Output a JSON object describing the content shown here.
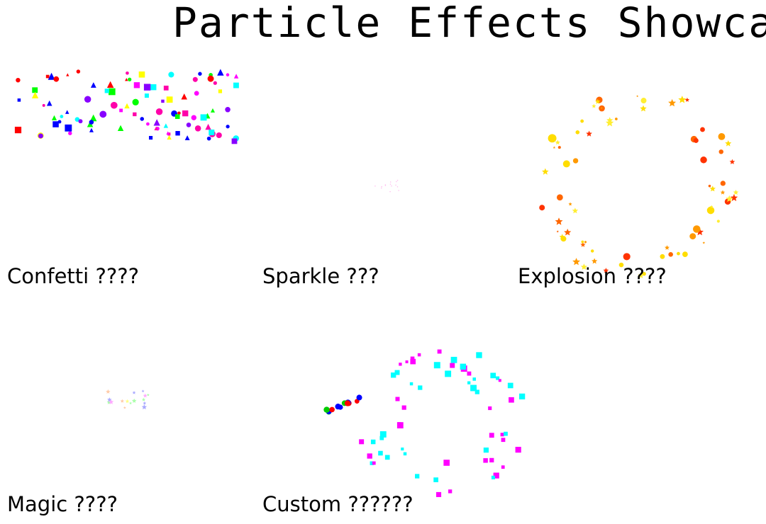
{
  "header": {
    "title": "Particle Effects Showcase"
  },
  "panels": [
    {
      "label": "Confetti ????"
    },
    {
      "label": "Sparkle ???"
    },
    {
      "label": "Explosion ????"
    },
    {
      "label": "Magic ????"
    },
    {
      "label": "Custom ??????"
    }
  ]
}
